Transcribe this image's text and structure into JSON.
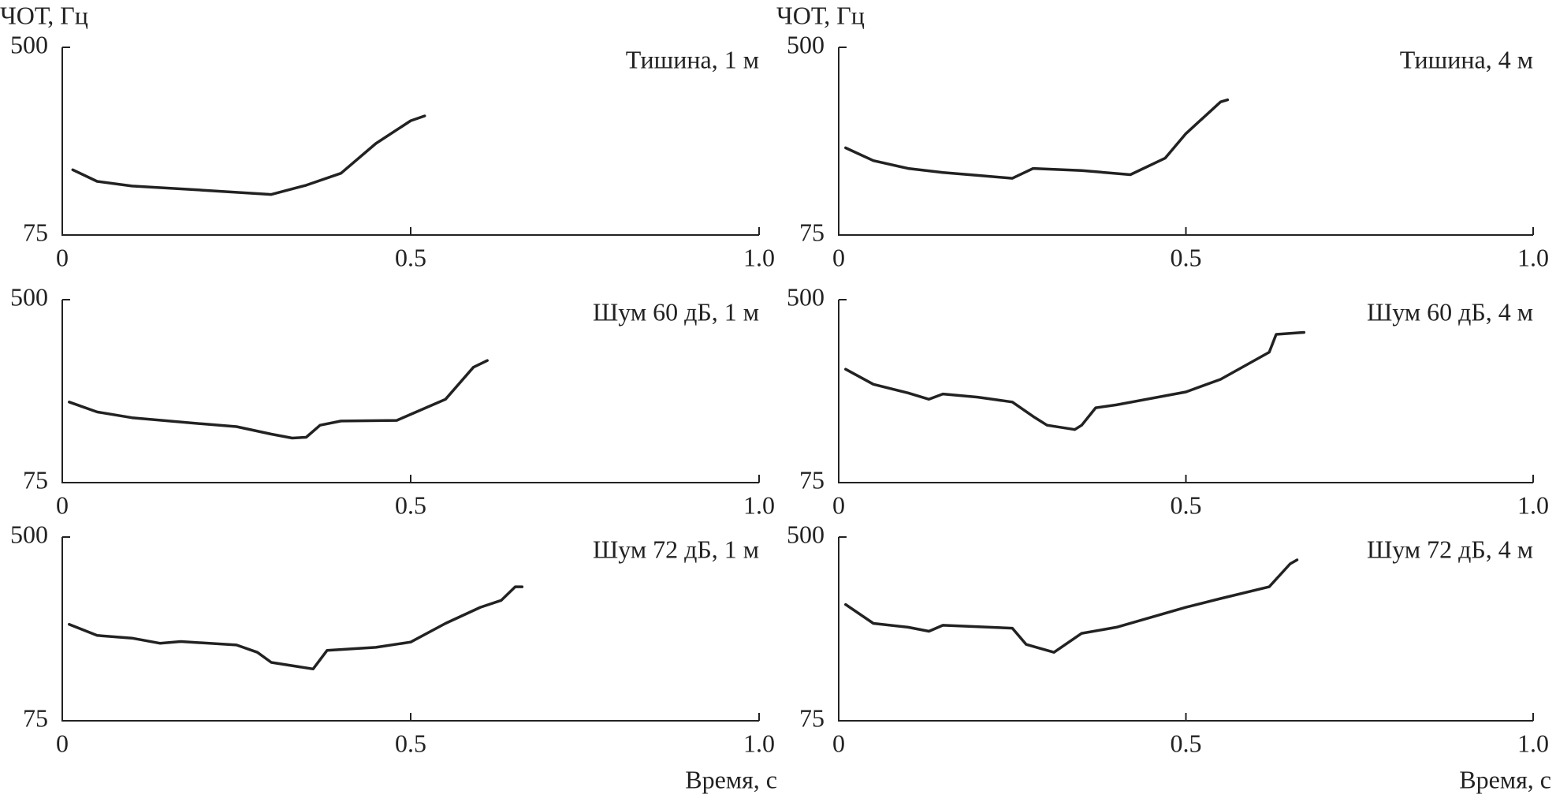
{
  "chart_data": [
    {
      "type": "line",
      "title": "Тишина, 1 м",
      "ylabel": "ЧОТ, Гц",
      "log_y": true,
      "color": "#222222",
      "xlim": [
        0,
        1
      ],
      "xticks": [
        0,
        0.5,
        {
          "value": 1,
          "label": "1.0"
        }
      ],
      "ylim": [
        75,
        500
      ],
      "yticks": [
        75,
        500
      ],
      "x": [
        0.015,
        0.05,
        0.1,
        0.2,
        0.3,
        0.35,
        0.4,
        0.45,
        0.5,
        0.52
      ],
      "values": [
        145,
        129,
        123,
        118,
        113,
        124,
        140,
        189,
        238,
        250
      ]
    },
    {
      "type": "line",
      "title": "Тишина, 4 м",
      "ylabel": "ЧОТ, Гц",
      "log_y": true,
      "color": "#222222",
      "xlim": [
        0,
        1
      ],
      "xticks": [
        0,
        0.5,
        {
          "value": 1,
          "label": "1.0"
        }
      ],
      "ylim": [
        75,
        500
      ],
      "yticks": [
        75,
        500
      ],
      "x": [
        0.01,
        0.05,
        0.1,
        0.15,
        0.2,
        0.25,
        0.28,
        0.35,
        0.42,
        0.47,
        0.5,
        0.55,
        0.56
      ],
      "values": [
        181,
        159,
        147,
        141,
        137,
        133,
        147,
        144,
        138,
        163,
        209,
        288,
        294
      ]
    },
    {
      "type": "line",
      "title": "Шум 60 дБ, 1 м",
      "log_y": true,
      "color": "#222222",
      "xlim": [
        0,
        1
      ],
      "xticks": [
        0,
        0.5,
        {
          "value": 1,
          "label": "1.0"
        }
      ],
      "ylim": [
        75,
        500
      ],
      "yticks": [
        75,
        500
      ],
      "x": [
        0.01,
        0.05,
        0.1,
        0.2,
        0.25,
        0.3,
        0.33,
        0.35,
        0.37,
        0.4,
        0.48,
        0.55,
        0.59,
        0.61
      ],
      "values": [
        173,
        156,
        147,
        138,
        134,
        124,
        119,
        120,
        136,
        142,
        143,
        178,
        248,
        266
      ]
    },
    {
      "type": "line",
      "title": "Шум 60 дБ, 4 м",
      "log_y": true,
      "color": "#222222",
      "xlim": [
        0,
        1
      ],
      "xticks": [
        0,
        0.5,
        {
          "value": 1,
          "label": "1.0"
        }
      ],
      "ylim": [
        75,
        500
      ],
      "yticks": [
        75,
        500
      ],
      "x": [
        0.01,
        0.05,
        0.1,
        0.13,
        0.15,
        0.2,
        0.25,
        0.28,
        0.3,
        0.34,
        0.35,
        0.37,
        0.4,
        0.5,
        0.55,
        0.62,
        0.63,
        0.67
      ],
      "values": [
        243,
        208,
        190,
        178,
        188,
        182,
        173,
        149,
        136,
        130,
        136,
        163,
        168,
        192,
        219,
        290,
        349,
        356
      ]
    },
    {
      "type": "line",
      "title": "Шум 72 дБ, 1 м",
      "xlabel": "Время, с",
      "log_y": true,
      "color": "#222222",
      "xlim": [
        0,
        1
      ],
      "xticks": [
        0,
        0.5,
        {
          "value": 1,
          "label": "1.0"
        }
      ],
      "ylim": [
        75,
        500
      ],
      "yticks": [
        75,
        500
      ],
      "x": [
        0.01,
        0.05,
        0.1,
        0.14,
        0.17,
        0.25,
        0.28,
        0.3,
        0.36,
        0.38,
        0.45,
        0.5,
        0.55,
        0.6,
        0.63,
        0.65,
        0.66
      ],
      "values": [
        203,
        181,
        176,
        167,
        170,
        164,
        152,
        137,
        128,
        155,
        160,
        169,
        205,
        242,
        260,
        299,
        299
      ]
    },
    {
      "type": "line",
      "title": "Шум 72 дБ, 4 м",
      "xlabel": "Время, с",
      "log_y": true,
      "color": "#222222",
      "xlim": [
        0,
        1
      ],
      "xticks": [
        0,
        0.5,
        {
          "value": 1,
          "label": "1.0"
        }
      ],
      "ylim": [
        75,
        500
      ],
      "yticks": [
        75,
        500
      ],
      "x": [
        0.01,
        0.05,
        0.1,
        0.13,
        0.15,
        0.25,
        0.27,
        0.31,
        0.35,
        0.4,
        0.5,
        0.55,
        0.62,
        0.65,
        0.66
      ],
      "values": [
        249,
        205,
        197,
        189,
        201,
        195,
        165,
        152,
        185,
        197,
        242,
        265,
        299,
        379,
        395
      ]
    }
  ]
}
